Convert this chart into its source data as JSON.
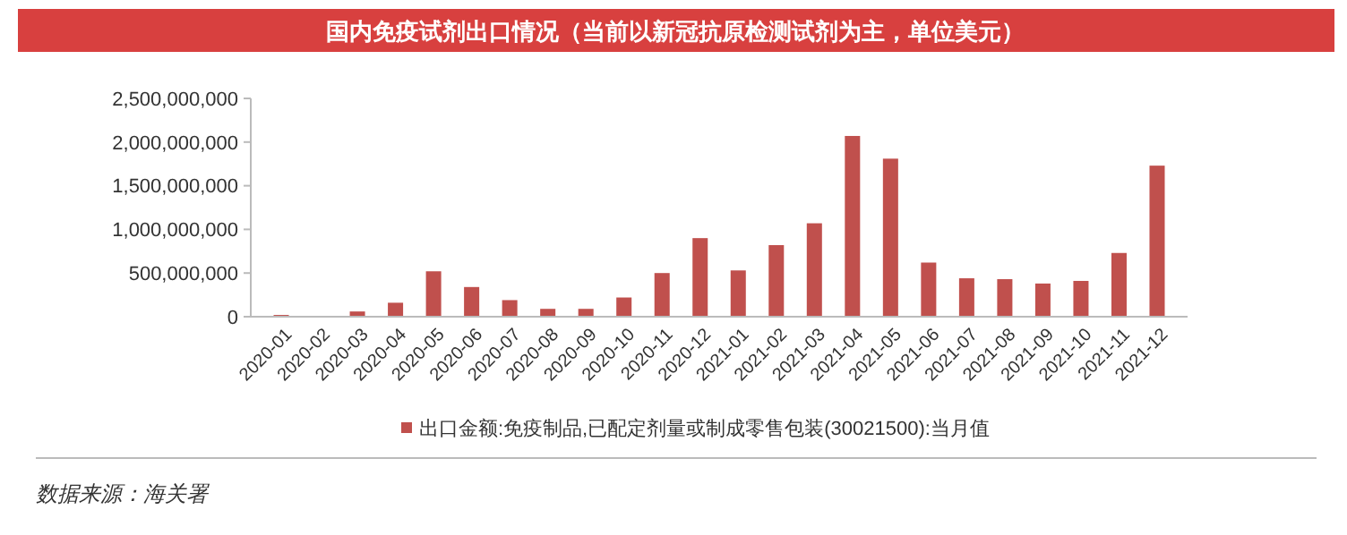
{
  "chart_data": {
    "type": "bar",
    "title": "国内免疫试剂出口情况（当前以新冠抗原检测试剂为主，单位美元）",
    "categories": [
      "2020-01",
      "2020-02",
      "2020-03",
      "2020-04",
      "2020-05",
      "2020-06",
      "2020-07",
      "2020-08",
      "2020-09",
      "2020-10",
      "2020-11",
      "2020-12",
      "2021-01",
      "2021-02",
      "2021-03",
      "2021-04",
      "2021-05",
      "2021-06",
      "2021-07",
      "2021-08",
      "2021-09",
      "2021-10",
      "2021-11",
      "2021-12"
    ],
    "series": [
      {
        "name": "出口金额:免疫制品,已配定剂量或制成零售包装(30021500):当月值",
        "color": "#c0504d",
        "values": [
          20000000,
          10000000,
          60000000,
          160000000,
          520000000,
          340000000,
          190000000,
          90000000,
          90000000,
          220000000,
          500000000,
          900000000,
          530000000,
          820000000,
          1070000000,
          2070000000,
          1810000000,
          620000000,
          440000000,
          430000000,
          380000000,
          410000000,
          730000000,
          1730000000
        ]
      }
    ],
    "ylim": [
      0,
      2500000000
    ],
    "yticks": [
      {
        "value": 0,
        "label": "0"
      },
      {
        "value": 500000000,
        "label": "500,000,000"
      },
      {
        "value": 1000000000,
        "label": "1,000,000,000"
      },
      {
        "value": 1500000000,
        "label": "1,500,000,000"
      },
      {
        "value": 2000000000,
        "label": "2,000,000,000"
      },
      {
        "value": 2500000000,
        "label": "2,500,000,000"
      }
    ],
    "grid": false,
    "legend": "bottom",
    "annotations": [
      "数据来源：海关署"
    ]
  }
}
